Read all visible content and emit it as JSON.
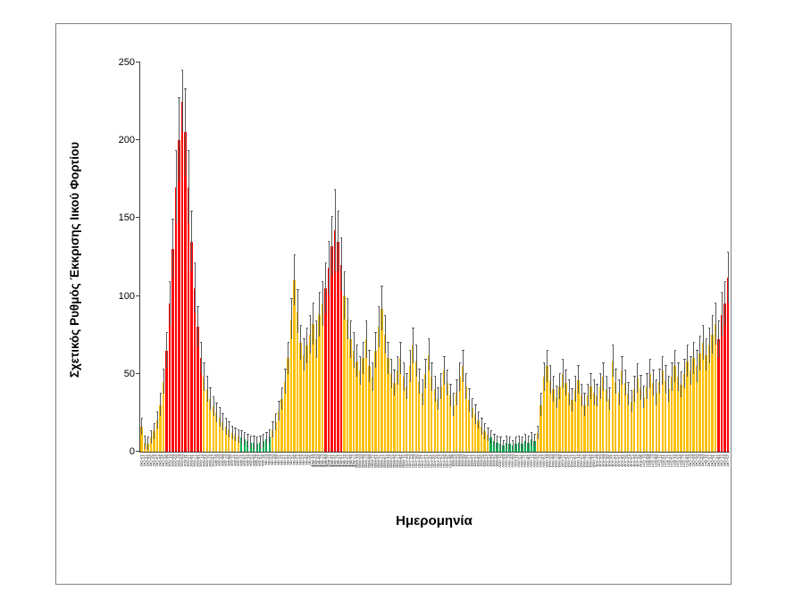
{
  "figure": {
    "background": "#FFFFFF",
    "frame_border_color": "#808080"
  },
  "chart_data": {
    "type": "bar",
    "title": "",
    "xlabel": "Ημερομηνία",
    "ylabel": "Σχετικός Ρυθμός Έκκρισης Ιικού Φορτίου",
    "ylim": [
      0,
      250
    ],
    "yticks": [
      0,
      50,
      100,
      150,
      200,
      250
    ],
    "grid": false,
    "legend": "none",
    "error_bars": true,
    "error_bar_color": "#595959",
    "bar_color_palette": {
      "r": "#FF0000",
      "o": "#FFC000",
      "g": "#00B050"
    },
    "color_segments": [
      {
        "code": "o",
        "count": 8
      },
      {
        "code": "r",
        "count": 12
      },
      {
        "code": "o",
        "count": 12
      },
      {
        "code": "g",
        "count": 10
      },
      {
        "code": "o",
        "count": 17
      },
      {
        "code": "r",
        "count": 6
      },
      {
        "code": "o",
        "count": 47
      },
      {
        "code": "g",
        "count": 15
      },
      {
        "code": "o",
        "count": 58
      },
      {
        "code": "r",
        "count": 4
      }
    ],
    "categories": [
      "14-Οκτ",
      "16-Οκτ",
      "18-Οκτ",
      "20-Οκτ",
      "22-Οκτ",
      "24-Οκτ",
      "26-Οκτ",
      "28-Οκτ",
      "30-Οκτ",
      "01-Νοε",
      "03-Νοε",
      "05-Νοε",
      "07-Νοε",
      "09-Νοε",
      "11-Νοε",
      "13-Νοε",
      "15-Νοε",
      "17-Νοε",
      "19-Νοε",
      "21-Νοε",
      "23-Νοε",
      "25-Νοε",
      "27-Νοε",
      "29-Νοε",
      "01-Δεκ",
      "03-Δεκ",
      "05-Δεκ",
      "07-Δεκ",
      "09-Δεκ",
      "11-Δεκ",
      "13-Δεκ",
      "15-Δεκ",
      "17-Δεκ",
      "19-Δεκ",
      "21-Δεκ",
      "23-Δεκ",
      "25-Δεκ",
      "27-Δεκ",
      "29-Δεκ",
      "31-Δεκ",
      "02-Ιαν",
      "04-Ιαν",
      "06-Ιαν",
      "08-Ιαν",
      "10-Ιαν",
      "12-Ιαν",
      "14-Ιαν",
      "16-Ιαν",
      "18-Ιαν",
      "20-Ιαν",
      "22-Ιαν",
      "24-Ιαν",
      "26-Ιαν",
      "28-Ιαν",
      "30-Ιαν",
      "01-Φεβ",
      "03-Φεβ",
      "05-Φεβ",
      "07-Φεβ",
      "09-Φεβ",
      "11-Φεβ",
      "13-Φεβ",
      "15-Φεβ",
      "17-Φεβ",
      "19-Φεβ",
      "21-Φεβ",
      "23-Φεβ",
      "25-Φεβ",
      "27-Φεβ",
      "01-Μαρ",
      "03-Μαρ",
      "05-Μαρ",
      "07-Μαρ",
      "09-Μαρ",
      "11-Μαρ",
      "13-Μαρ",
      "15-Μαρ",
      "17-Μαρ",
      "19-Μαρ",
      "21-Μαρ",
      "23-Μαρ",
      "25-Μαρ",
      "27-Μαρ",
      "29-Μαρ",
      "31-Μαρ",
      "02-Απρ",
      "04-Απρ",
      "06-Απρ",
      "08-Απρ",
      "10-Απρ",
      "12-Απρ",
      "14-Απρ",
      "16-Απρ",
      "18-Απρ",
      "20-Απρ",
      "22-Απρ",
      "24-Απρ",
      "26-Απρ",
      "28-Απρ",
      "30-Απρ",
      "02-Μαϊ",
      "04-Μαϊ",
      "06-Μαϊ",
      "08-Μαϊ",
      "10-Μαϊ",
      "12-Μαϊ",
      "14-Μαϊ",
      "16-Μαϊ",
      "18-Μαϊ",
      "20-Μαϊ",
      "22-Μαϊ",
      "24-Μαϊ",
      "26-Μαϊ",
      "28-Μαϊ",
      "30-Μαϊ",
      "01-Ιουν",
      "03-Ιουν",
      "05-Ιουν",
      "07-Ιουν",
      "09-Ιουν",
      "11-Ιουν",
      "13-Ιουν",
      "15-Ιουν",
      "17-Ιουν",
      "19-Ιουν",
      "21-Ιουν",
      "23-Ιουν",
      "25-Ιουν",
      "27-Ιουν",
      "29-Ιουν",
      "01-Ιουλ",
      "03-Ιουλ",
      "05-Ιουλ",
      "07-Ιουλ",
      "09-Ιουλ",
      "11-Ιουλ",
      "13-Ιουλ",
      "15-Ιουλ",
      "17-Ιουλ",
      "19-Ιουλ",
      "21-Ιουλ",
      "23-Ιουλ",
      "25-Ιουλ",
      "27-Ιουλ",
      "29-Ιουλ",
      "31-Ιουλ",
      "02-Αυγ",
      "04-Αυγ",
      "06-Αυγ",
      "08-Αυγ",
      "10-Αυγ",
      "12-Αυγ",
      "14-Αυγ",
      "16-Αυγ",
      "18-Αυγ",
      "20-Αυγ",
      "22-Αυγ",
      "24-Αυγ",
      "26-Αυγ",
      "28-Αυγ",
      "30-Αυγ",
      "01-Σεπ",
      "03-Σεπ",
      "05-Σεπ",
      "07-Σεπ",
      "09-Σεπ",
      "11-Σεπ",
      "13-Σεπ",
      "15-Σεπ",
      "17-Σεπ",
      "19-Σεπ",
      "21-Σεπ",
      "23-Σεπ",
      "25-Σεπ",
      "27-Σεπ",
      "29-Σεπ",
      "01-Οκτ",
      "03-Οκτ",
      "05-Οκτ",
      "07-Οκτ",
      "09-Οκτ",
      "11-Οκτ",
      "13-Οκτ",
      "15-Οκτ",
      "17-Οκτ",
      "19-Οκτ",
      "21-Οκτ",
      "23-Οκτ",
      "25-Οκτ"
    ],
    "values": [
      16,
      6,
      5,
      9,
      13,
      20,
      30,
      45,
      65,
      95,
      130,
      170,
      200,
      225,
      205,
      170,
      135,
      105,
      80,
      60,
      48,
      40,
      34,
      29,
      25,
      22,
      19,
      16,
      14,
      12,
      11,
      10,
      9,
      8,
      7,
      6,
      6,
      5,
      6,
      7,
      8,
      10,
      14,
      19,
      26,
      34,
      45,
      60,
      85,
      110,
      90,
      70,
      62,
      68,
      75,
      82,
      72,
      88,
      95,
      105,
      118,
      132,
      142,
      135,
      120,
      100,
      85,
      72,
      65,
      58,
      52,
      60,
      72,
      55,
      48,
      65,
      80,
      92,
      75,
      60,
      50,
      44,
      52,
      60,
      48,
      42,
      55,
      68,
      58,
      45,
      38,
      50,
      62,
      48,
      40,
      34,
      42,
      52,
      44,
      36,
      30,
      38,
      48,
      55,
      42,
      33,
      28,
      24,
      20,
      16,
      13,
      11,
      9,
      7,
      6,
      5,
      4,
      6,
      5,
      4,
      5,
      6,
      5,
      7,
      6,
      8,
      7,
      12,
      30,
      48,
      55,
      46,
      40,
      35,
      42,
      50,
      44,
      38,
      33,
      40,
      46,
      36,
      30,
      36,
      42,
      38,
      36,
      42,
      48,
      40,
      34,
      58,
      45,
      38,
      52,
      44,
      37,
      32,
      40,
      47,
      41,
      35,
      42,
      50,
      44,
      38,
      45,
      52,
      46,
      40,
      48,
      55,
      48,
      43,
      50,
      58,
      52,
      60,
      55,
      63,
      70,
      62,
      68,
      75,
      82,
      72,
      88,
      95,
      112
    ],
    "errors": [
      5,
      4,
      4,
      4,
      5,
      5,
      7,
      8,
      11,
      14,
      19,
      23,
      27,
      20,
      28,
      23,
      19,
      16,
      13,
      10,
      9,
      8,
      7,
      6,
      6,
      6,
      5,
      5,
      5,
      4,
      4,
      4,
      4,
      4,
      4,
      4,
      4,
      4,
      4,
      4,
      4,
      4,
      5,
      5,
      6,
      7,
      8,
      10,
      13,
      16,
      14,
      11,
      10,
      11,
      12,
      13,
      12,
      14,
      14,
      16,
      17,
      19,
      26,
      19,
      17,
      15,
      13,
      12,
      11,
      10,
      9,
      10,
      12,
      10,
      9,
      11,
      13,
      14,
      12,
      10,
      9,
      8,
      9,
      10,
      9,
      8,
      10,
      11,
      10,
      8,
      8,
      9,
      10,
      9,
      8,
      7,
      8,
      9,
      8,
      7,
      7,
      8,
      9,
      10,
      8,
      7,
      6,
      6,
      5,
      5,
      5,
      4,
      4,
      4,
      4,
      4,
      3,
      4,
      4,
      3,
      4,
      4,
      4,
      4,
      4,
      4,
      4,
      4,
      7,
      9,
      10,
      9,
      8,
      7,
      8,
      9,
      8,
      8,
      7,
      8,
      9,
      7,
      7,
      7,
      8,
      8,
      7,
      8,
      9,
      8,
      7,
      10,
      8,
      8,
      9,
      8,
      7,
      7,
      8,
      9,
      8,
      7,
      8,
      9,
      8,
      8,
      8,
      9,
      9,
      8,
      9,
      10,
      9,
      8,
      9,
      10,
      9,
      10,
      10,
      11,
      11,
      10,
      11,
      12,
      13,
      12,
      14,
      14,
      16
    ]
  }
}
